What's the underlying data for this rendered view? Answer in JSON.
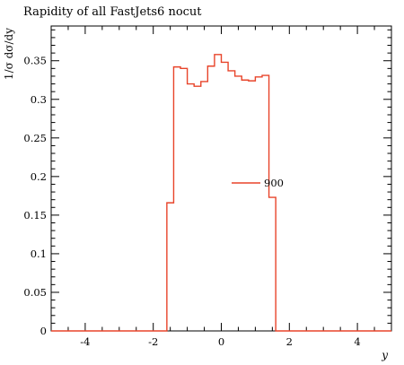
{
  "chart_data": {
    "type": "line",
    "title": "Rapidity of all FastJets6 nocut",
    "xlabel": "y",
    "ylabel": "1/σ dσ/dy",
    "xlim": [
      -5,
      5
    ],
    "ylim": [
      0,
      0.395
    ],
    "x_ticks": [
      -4,
      -2,
      0,
      2,
      4
    ],
    "x_tick_labels": [
      "-4",
      "-2",
      "0",
      "2",
      "4"
    ],
    "y_ticks": [
      0,
      0.05,
      0.1,
      0.15,
      0.2,
      0.25,
      0.3,
      0.35
    ],
    "y_tick_labels": [
      "0",
      "0.05",
      "0.1",
      "0.15",
      "0.2",
      "0.25",
      "0.3",
      "0.35"
    ],
    "legend_position": "center-right",
    "grid": false,
    "series": [
      {
        "name": "900",
        "color": "#e8442a",
        "style": "step",
        "bin_edges": [
          -5.0,
          -4.8,
          -4.6,
          -4.4,
          -4.2,
          -4.0,
          -3.8,
          -3.6,
          -3.4,
          -3.2,
          -3.0,
          -2.8,
          -2.6,
          -2.4,
          -2.2,
          -2.0,
          -1.8,
          -1.6,
          -1.4,
          -1.2,
          -1.0,
          -0.8,
          -0.6,
          -0.4,
          -0.2,
          0.0,
          0.2,
          0.4,
          0.6,
          0.8,
          1.0,
          1.2,
          1.4,
          1.6,
          1.8,
          2.0,
          2.2,
          2.4,
          2.6,
          2.8,
          3.0,
          3.2,
          3.4,
          3.6,
          3.8,
          4.0,
          4.2,
          4.4,
          4.6,
          4.8,
          5.0
        ],
        "values": [
          0,
          0,
          0,
          0,
          0,
          0,
          0,
          0,
          0,
          0,
          0,
          0,
          0,
          0,
          0,
          0,
          0,
          0.166,
          0.342,
          0.34,
          0.32,
          0.317,
          0.323,
          0.343,
          0.358,
          0.348,
          0.337,
          0.33,
          0.325,
          0.324,
          0.329,
          0.331,
          0.173,
          0,
          0,
          0,
          0,
          0,
          0,
          0,
          0,
          0,
          0,
          0,
          0,
          0,
          0,
          0,
          0,
          0
        ]
      }
    ]
  }
}
